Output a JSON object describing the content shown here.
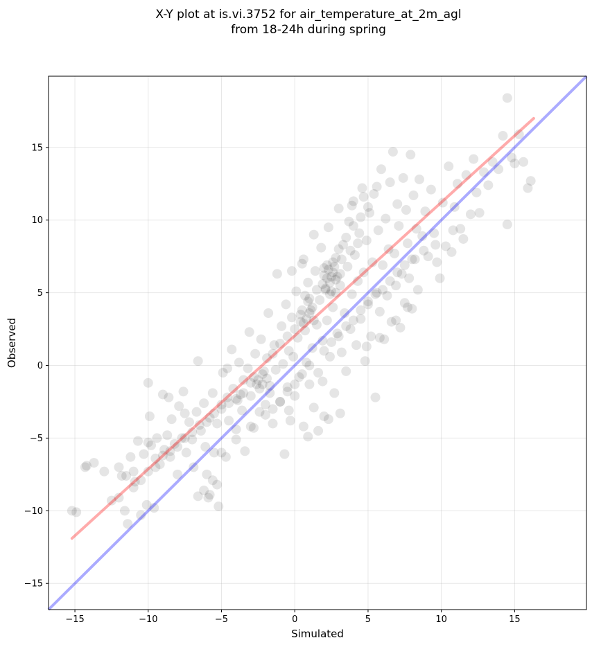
{
  "chart_data": {
    "type": "scatter",
    "title_line1": "X-Y plot at is.vi.3752 for air_temperature_at_2m_agl",
    "title_line2": "from 18-24h during spring",
    "xlabel": "Simulated",
    "ylabel": "Observed",
    "xlim": [
      -16.8,
      19.9
    ],
    "ylim": [
      -16.8,
      19.9
    ],
    "xticks": [
      -15,
      -10,
      -5,
      0,
      5,
      10,
      15
    ],
    "yticks": [
      -15,
      -10,
      -5,
      0,
      5,
      10,
      15
    ],
    "xtick_labels": [
      "−15",
      "−10",
      "−5",
      "0",
      "5",
      "10",
      "15"
    ],
    "ytick_labels": [
      "−15",
      "−10",
      "−5",
      "0",
      "5",
      "10",
      "15"
    ],
    "grid": true,
    "point_color": "#000000",
    "point_opacity": 0.1,
    "one_to_one_line": {
      "color": "#0000ff",
      "opacity": 0.33,
      "x": [
        -16.8,
        19.9
      ],
      "y": [
        -16.8,
        19.9
      ]
    },
    "regression_line": {
      "color": "#ff0000",
      "opacity": 0.33,
      "x": [
        -15.2,
        16.3
      ],
      "y": [
        -11.9,
        17.0
      ]
    },
    "points": [
      [
        -15.2,
        -10.0
      ],
      [
        -14.9,
        -10.1
      ],
      [
        -14.3,
        -7.0
      ],
      [
        -14.2,
        -6.9
      ],
      [
        -13.7,
        -6.7
      ],
      [
        -13.0,
        -7.3
      ],
      [
        -12.5,
        -9.3
      ],
      [
        -12.0,
        -9.1
      ],
      [
        -11.8,
        -7.6
      ],
      [
        -11.6,
        -10.0
      ],
      [
        -11.4,
        -10.9
      ],
      [
        -11.2,
        -6.3
      ],
      [
        -11.0,
        -7.3
      ],
      [
        -10.9,
        -8.0
      ],
      [
        -10.7,
        -5.2
      ],
      [
        -10.5,
        -10.3
      ],
      [
        -10.3,
        -6.1
      ],
      [
        -10.1,
        -9.6
      ],
      [
        -10.0,
        -5.3
      ],
      [
        -9.8,
        -5.5
      ],
      [
        -9.6,
        -9.8
      ],
      [
        -9.5,
        -6.4
      ],
      [
        -9.4,
        -5.0
      ],
      [
        -9.2,
        -6.8
      ],
      [
        -9.0,
        -2.0
      ],
      [
        -8.9,
        -5.8
      ],
      [
        -8.7,
        -4.8
      ],
      [
        -8.5,
        -6.3
      ],
      [
        -8.4,
        -3.7
      ],
      [
        -8.2,
        -5.4
      ],
      [
        -8.0,
        -7.5
      ],
      [
        -7.9,
        -2.8
      ],
      [
        -7.7,
        -5.0
      ],
      [
        -7.5,
        -3.3
      ],
      [
        -7.4,
        -6.0
      ],
      [
        -7.2,
        -3.9
      ],
      [
        -7.0,
        -5.1
      ],
      [
        -6.9,
        -7.0
      ],
      [
        -6.7,
        -3.2
      ],
      [
        -6.6,
        0.3
      ],
      [
        -6.4,
        -4.5
      ],
      [
        -6.2,
        -2.6
      ],
      [
        -6.1,
        -5.6
      ],
      [
        -5.9,
        -9.1
      ],
      [
        -5.8,
        -3.6
      ],
      [
        -5.6,
        -1.9
      ],
      [
        -5.5,
        -6.0
      ],
      [
        -5.3,
        -4.0
      ],
      [
        -5.2,
        -9.7
      ],
      [
        -5.0,
        -2.7
      ],
      [
        -4.9,
        -0.5
      ],
      [
        -4.7,
        -6.3
      ],
      [
        -4.6,
        -2.2
      ],
      [
        -4.5,
        -3.8
      ],
      [
        -4.3,
        1.1
      ],
      [
        -4.2,
        -1.6
      ],
      [
        -4.0,
        -4.4
      ],
      [
        -3.9,
        -2.4
      ],
      [
        -3.8,
        0.2
      ],
      [
        -3.6,
        -3.1
      ],
      [
        -3.5,
        -1.0
      ],
      [
        -3.4,
        -5.9
      ],
      [
        -3.2,
        -0.2
      ],
      [
        -3.1,
        2.3
      ],
      [
        -3.0,
        -2.1
      ],
      [
        -2.8,
        -4.3
      ],
      [
        -2.7,
        0.8
      ],
      [
        -2.6,
        -1.3
      ],
      [
        -2.4,
        -3.2
      ],
      [
        -2.3,
        1.8
      ],
      [
        -2.2,
        -0.6
      ],
      [
        -2.0,
        -2.7
      ],
      [
        -1.9,
        0.5
      ],
      [
        -1.8,
        3.6
      ],
      [
        -1.7,
        -1.9
      ],
      [
        -1.5,
        -4.0
      ],
      [
        -1.4,
        1.4
      ],
      [
        -1.3,
        -0.3
      ],
      [
        -1.2,
        6.3
      ],
      [
        -1.0,
        -2.5
      ],
      [
        -0.9,
        2.7
      ],
      [
        -0.8,
        0.1
      ],
      [
        -0.7,
        -6.1
      ],
      [
        -0.6,
        4.2
      ],
      [
        -0.5,
        -1.5
      ],
      [
        -0.4,
        1.0
      ],
      [
        -0.3,
        -3.8
      ],
      [
        -0.2,
        3.3
      ],
      [
        -0.1,
        0.6
      ],
      [
        0.0,
        -2.1
      ],
      [
        0.1,
        5.1
      ],
      [
        0.2,
        1.9
      ],
      [
        0.3,
        -0.8
      ],
      [
        0.4,
        3.0
      ],
      [
        0.5,
        7.0
      ],
      [
        0.6,
        -4.2
      ],
      [
        0.7,
        2.4
      ],
      [
        0.8,
        0.2
      ],
      [
        0.9,
        5.7
      ],
      [
        1.0,
        -1.3
      ],
      [
        1.1,
        3.8
      ],
      [
        1.2,
        1.2
      ],
      [
        1.3,
        -2.9
      ],
      [
        1.4,
        6.5
      ],
      [
        1.5,
        2.8
      ],
      [
        1.6,
        -0.5
      ],
      [
        1.7,
        4.5
      ],
      [
        1.8,
        8.1
      ],
      [
        1.9,
        1.7
      ],
      [
        2.0,
        -3.5
      ],
      [
        2.1,
        5.2
      ],
      [
        2.2,
        3.1
      ],
      [
        2.3,
        9.5
      ],
      [
        2.4,
        0.6
      ],
      [
        2.5,
        6.1
      ],
      [
        2.6,
        4.0
      ],
      [
        2.7,
        -1.9
      ],
      [
        2.8,
        7.4
      ],
      [
        2.9,
        2.2
      ],
      [
        3.0,
        10.8
      ],
      [
        3.1,
        5.5
      ],
      [
        3.2,
        0.9
      ],
      [
        3.3,
        8.3
      ],
      [
        3.4,
        3.6
      ],
      [
        3.5,
        -0.4
      ],
      [
        3.6,
        6.8
      ],
      [
        3.7,
        9.9
      ],
      [
        3.8,
        2.5
      ],
      [
        3.9,
        4.9
      ],
      [
        4.0,
        11.3
      ],
      [
        4.1,
        7.6
      ],
      [
        4.2,
        1.4
      ],
      [
        4.3,
        5.8
      ],
      [
        4.4,
        9.1
      ],
      [
        4.5,
        3.2
      ],
      [
        4.6,
        12.2
      ],
      [
        4.7,
        6.4
      ],
      [
        4.8,
        0.3
      ],
      [
        4.9,
        8.6
      ],
      [
        5.0,
        4.4
      ],
      [
        5.1,
        10.5
      ],
      [
        5.2,
        2.0
      ],
      [
        5.3,
        7.1
      ],
      [
        5.4,
        11.8
      ],
      [
        5.5,
        -2.2
      ],
      [
        5.6,
        5.0
      ],
      [
        5.7,
        9.3
      ],
      [
        5.8,
        3.7
      ],
      [
        5.9,
        13.5
      ],
      [
        6.0,
        6.9
      ],
      [
        6.1,
        1.8
      ],
      [
        6.2,
        10.1
      ],
      [
        6.3,
        4.8
      ],
      [
        6.4,
        8.0
      ],
      [
        6.5,
        12.6
      ],
      [
        6.6,
        3.0
      ],
      [
        6.7,
        14.7
      ],
      [
        6.8,
        7.7
      ],
      [
        6.9,
        5.5
      ],
      [
        7.0,
        11.1
      ],
      [
        7.1,
        9.6
      ],
      [
        7.2,
        2.6
      ],
      [
        7.3,
        6.3
      ],
      [
        7.4,
        12.9
      ],
      [
        7.5,
        4.3
      ],
      [
        7.6,
        10.7
      ],
      [
        7.7,
        8.4
      ],
      [
        7.8,
        6.0
      ],
      [
        7.9,
        14.5
      ],
      [
        8.0,
        3.9
      ],
      [
        8.1,
        11.7
      ],
      [
        8.2,
        7.3
      ],
      [
        8.3,
        9.4
      ],
      [
        8.4,
        5.2
      ],
      [
        8.5,
        12.8
      ],
      [
        8.7,
        8.9
      ],
      [
        8.9,
        10.6
      ],
      [
        9.1,
        7.5
      ],
      [
        9.3,
        12.1
      ],
      [
        9.5,
        9.1
      ],
      [
        9.7,
        7.1
      ],
      [
        9.9,
        6.0
      ],
      [
        10.1,
        11.2
      ],
      [
        10.3,
        8.2
      ],
      [
        10.5,
        13.7
      ],
      [
        10.7,
        7.8
      ],
      [
        10.9,
        10.9
      ],
      [
        11.1,
        12.5
      ],
      [
        11.3,
        9.4
      ],
      [
        11.5,
        8.7
      ],
      [
        11.7,
        13.1
      ],
      [
        12.0,
        10.4
      ],
      [
        12.2,
        14.2
      ],
      [
        12.4,
        11.9
      ],
      [
        12.6,
        10.5
      ],
      [
        12.9,
        13.3
      ],
      [
        13.2,
        12.4
      ],
      [
        13.5,
        14.0
      ],
      [
        13.9,
        13.5
      ],
      [
        14.2,
        15.8
      ],
      [
        14.5,
        9.7
      ],
      [
        14.5,
        18.4
      ],
      [
        14.8,
        14.3
      ],
      [
        15.0,
        13.9
      ],
      [
        15.3,
        15.9
      ],
      [
        15.6,
        14.0
      ],
      [
        15.9,
        12.2
      ],
      [
        16.1,
        12.7
      ],
      [
        2.2,
        6.0
      ],
      [
        2.4,
        5.7
      ],
      [
        2.6,
        6.4
      ],
      [
        2.1,
        5.3
      ],
      [
        2.8,
        5.9
      ],
      [
        2.3,
        6.6
      ],
      [
        2.5,
        5.1
      ],
      [
        2.7,
        6.8
      ],
      [
        2.0,
        6.2
      ],
      [
        2.9,
        6.1
      ],
      [
        2.4,
        4.9
      ],
      [
        2.6,
        7.1
      ],
      [
        1.9,
        5.6
      ],
      [
        3.1,
        6.3
      ],
      [
        2.2,
        6.9
      ],
      [
        2.8,
        5.0
      ],
      [
        0.8,
        3.2
      ],
      [
        1.0,
        3.6
      ],
      [
        0.6,
        2.9
      ],
      [
        1.2,
        4.0
      ],
      [
        0.9,
        4.4
      ],
      [
        0.4,
        3.5
      ],
      [
        1.3,
        3.1
      ],
      [
        0.7,
        4.8
      ],
      [
        -2.5,
        -1.0
      ],
      [
        -2.2,
        -1.3
      ],
      [
        -2.8,
        -0.8
      ],
      [
        -1.9,
        -0.9
      ],
      [
        -2.4,
        -1.6
      ],
      [
        -3.0,
        -1.2
      ],
      [
        -1.7,
        -1.4
      ],
      [
        -2.1,
        -0.4
      ],
      [
        -3.5,
        -1.9
      ],
      [
        -4.0,
        -2.3
      ],
      [
        -4.5,
        -2.6
      ],
      [
        -5.0,
        -3.0
      ],
      [
        -5.5,
        -3.3
      ],
      [
        -6.0,
        -3.9
      ],
      [
        -6.5,
        -4.1
      ],
      [
        -7.0,
        -4.6
      ],
      [
        -7.5,
        -5.0
      ],
      [
        -8.0,
        -5.6
      ],
      [
        -8.5,
        -5.9
      ],
      [
        -9.0,
        -6.2
      ],
      [
        -9.5,
        -7.0
      ],
      [
        -10.0,
        -7.3
      ],
      [
        -10.5,
        -7.9
      ],
      [
        -11.0,
        -8.4
      ],
      [
        -1.5,
        0.8
      ],
      [
        -1.0,
        1.5
      ],
      [
        -0.5,
        2.0
      ],
      [
        0.0,
        2.5
      ],
      [
        0.5,
        3.8
      ],
      [
        1.0,
        4.6
      ],
      [
        1.5,
        5.2
      ],
      [
        2.0,
        6.7
      ],
      [
        3.0,
        8.0
      ],
      [
        3.5,
        8.8
      ],
      [
        4.0,
        9.6
      ],
      [
        4.5,
        10.2
      ],
      [
        5.0,
        10.9
      ],
      [
        3.2,
        7.3
      ],
      [
        3.8,
        7.9
      ],
      [
        4.3,
        8.4
      ],
      [
        2.0,
        1.0
      ],
      [
        2.5,
        1.6
      ],
      [
        3.0,
        2.0
      ],
      [
        3.5,
        2.7
      ],
      [
        4.0,
        3.1
      ],
      [
        4.5,
        3.8
      ],
      [
        5.0,
        4.2
      ],
      [
        5.5,
        4.9
      ],
      [
        6.0,
        5.2
      ],
      [
        6.5,
        5.8
      ],
      [
        7.0,
        6.4
      ],
      [
        7.5,
        6.9
      ],
      [
        8.0,
        7.3
      ],
      [
        1.0,
        0.0
      ],
      [
        0.5,
        -0.6
      ],
      [
        0.0,
        -1.3
      ],
      [
        -0.5,
        -1.8
      ],
      [
        -1.0,
        -2.5
      ],
      [
        -1.5,
        -3.0
      ],
      [
        -2.0,
        -3.4
      ],
      [
        -3.0,
        -4.2
      ],
      [
        -4.0,
        -5.1
      ],
      [
        -5.0,
        -6.0
      ],
      [
        -6.0,
        -7.5
      ],
      [
        -6.2,
        -8.6
      ],
      [
        -5.8,
        -8.9
      ],
      [
        -5.3,
        -8.2
      ],
      [
        -6.6,
        -9.0
      ],
      [
        -5.6,
        -7.9
      ],
      [
        -12.0,
        -7.0
      ],
      [
        -11.5,
        -7.6
      ],
      [
        -10.0,
        -1.2
      ],
      [
        -9.9,
        -3.5
      ],
      [
        -7.6,
        -1.8
      ],
      [
        -8.6,
        -2.2
      ],
      [
        -3.7,
        -2.0
      ],
      [
        -4.6,
        -0.2
      ],
      [
        -0.4,
        -3.1
      ],
      [
        0.9,
        -4.9
      ],
      [
        1.6,
        -4.5
      ],
      [
        2.3,
        -3.7
      ],
      [
        3.1,
        -3.3
      ],
      [
        1.9,
        -1.1
      ],
      [
        4.9,
        1.3
      ],
      [
        5.8,
        1.9
      ],
      [
        6.9,
        3.1
      ],
      [
        7.7,
        4.0
      ],
      [
        8.8,
        7.9
      ],
      [
        9.6,
        8.3
      ],
      [
        10.8,
        9.3
      ],
      [
        3.9,
        11.0
      ],
      [
        4.7,
        11.6
      ],
      [
        5.6,
        12.3
      ],
      [
        1.3,
        9.0
      ],
      [
        0.6,
        7.3
      ],
      [
        -0.2,
        6.5
      ]
    ]
  }
}
